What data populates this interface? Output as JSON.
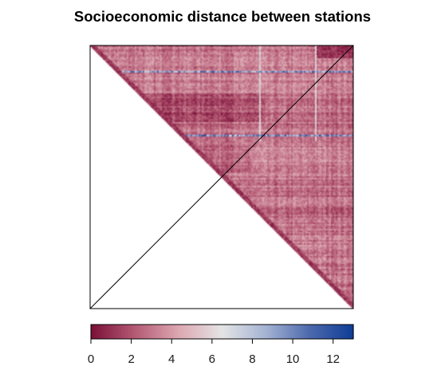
{
  "chart_data": {
    "type": "heatmap",
    "title": "Socioeconomic distance between stations",
    "xlabel": "",
    "ylabel": "",
    "matrix_shape": "upper-triangle",
    "value_range": [
      0,
      13
    ],
    "colorbar": {
      "ticks": [
        "0",
        "2",
        "4",
        "6",
        "8",
        "10",
        "12"
      ],
      "tick_values": [
        0,
        2,
        4,
        6,
        8,
        10,
        12
      ],
      "min": 0,
      "max": 13,
      "colors": [
        "#7a0f38",
        "#b45a74",
        "#dca7b1",
        "#e4e4e4",
        "#a5b3d3",
        "#4d69ad",
        "#0f3e96"
      ]
    },
    "grid": false,
    "legend_placement": "bottom"
  }
}
